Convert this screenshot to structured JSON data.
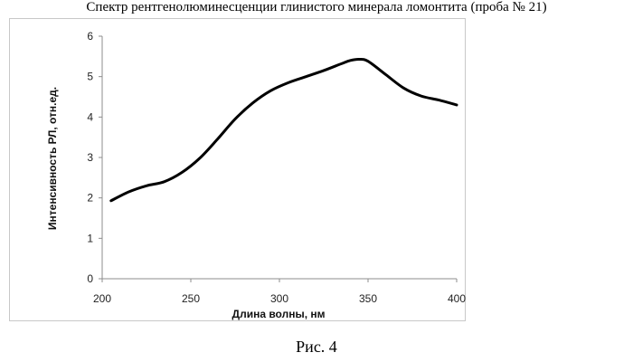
{
  "page": {
    "title": "Спектр рентгенолюминесценции глинистого минерала ломонтита (проба № 21)",
    "caption": "Рис. 4"
  },
  "chart_data": {
    "type": "line",
    "xlabel": "Длина волны, нм",
    "ylabel": "Интенсивность РЛ, отн.ед.",
    "xlim": [
      200,
      400
    ],
    "ylim": [
      0,
      6
    ],
    "xticks": [
      200,
      250,
      300,
      350,
      400
    ],
    "yticks": [
      0,
      1,
      2,
      3,
      4,
      5,
      6
    ],
    "grid": false,
    "line_color": "#000000",
    "series": [
      {
        "x": [
          205,
          215,
          225,
          235,
          245,
          255,
          265,
          275,
          285,
          295,
          305,
          315,
          325,
          335,
          340,
          345,
          350,
          360,
          370,
          380,
          390,
          400
        ],
        "y": [
          1.93,
          2.15,
          2.3,
          2.4,
          2.63,
          2.98,
          3.45,
          3.95,
          4.35,
          4.65,
          4.85,
          5.0,
          5.15,
          5.32,
          5.4,
          5.43,
          5.38,
          5.05,
          4.72,
          4.52,
          4.42,
          4.3
        ]
      }
    ]
  }
}
